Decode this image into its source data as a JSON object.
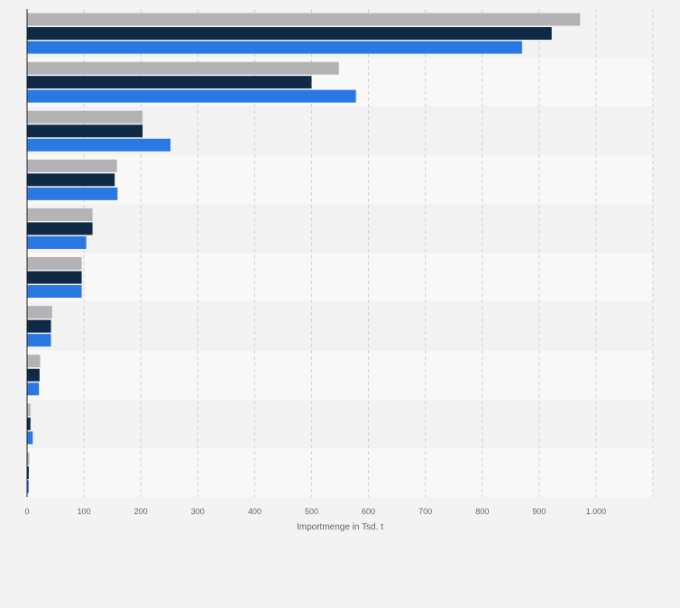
{
  "chart_data": {
    "type": "bar",
    "orientation": "horizontal",
    "title": "",
    "xlabel": "Importmenge in Tsd. t",
    "ylabel": "",
    "xlim": [
      0,
      1100
    ],
    "x_ticks": [
      0,
      100,
      200,
      300,
      400,
      500,
      600,
      700,
      800,
      900,
      1000
    ],
    "x_tick_labels": [
      "0",
      "100",
      "200",
      "300",
      "400",
      "500",
      "600",
      "700",
      "800",
      "900",
      "1.000"
    ],
    "grid": true,
    "legend": "none",
    "categories": [
      "",
      "",
      "",
      "",
      "",
      "",
      "",
      "",
      "",
      ""
    ],
    "series": [
      {
        "color": "#b3b3b6",
        "values": [
          972,
          548,
          203,
          158,
          115,
          96,
          44,
          23,
          6,
          4
        ]
      },
      {
        "color": "#0f2a46",
        "values": [
          922,
          500,
          203,
          154,
          115,
          96,
          42,
          22,
          6,
          3
        ]
      },
      {
        "color": "#2a78e4",
        "values": [
          870,
          578,
          252,
          159,
          104,
          96,
          42,
          21,
          10,
          3
        ]
      }
    ]
  }
}
